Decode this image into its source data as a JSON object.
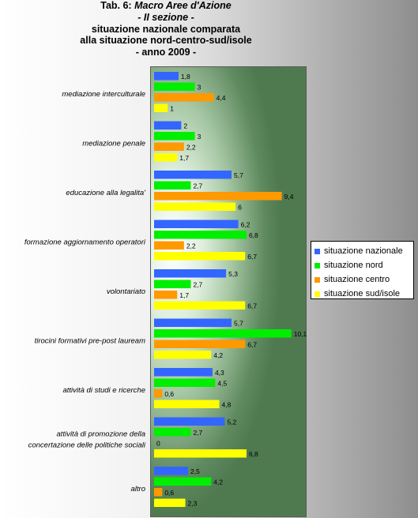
{
  "title": {
    "line1_prefix": "Tab. 6: ",
    "line1_italic": "Macro Aree d'Azione",
    "line2": "- II sezione -",
    "line3": "situazione nazionale comparata",
    "line4": "alla situazione nord-centro-sud/isole",
    "line5": "- anno 2009 -"
  },
  "chart_data": {
    "type": "bar",
    "orientation": "horizontal",
    "xlim": [
      0,
      12
    ],
    "grid": false,
    "legend_position": "right",
    "categories": [
      "mediazione interculturale",
      "mediazione penale",
      "educazione alla legalita'",
      "formazione aggiornamento  operatori",
      "volontariato",
      "tirocini formativi pre-post lauream",
      "attività di studi e ricerche",
      "attività di promozione della|concertazione delle politiche sociali",
      "altro"
    ],
    "series": [
      {
        "name": "situazione nazionale",
        "color": "#3366ff",
        "values": [
          1.8,
          2,
          5.7,
          6.2,
          5.3,
          5.7,
          4.3,
          5.2,
          2.5
        ]
      },
      {
        "name": "situazione nord",
        "color": "#00ee00",
        "values": [
          3,
          3,
          2.7,
          6.8,
          2.7,
          10.1,
          4.5,
          2.7,
          4.2
        ]
      },
      {
        "name": "situazione centro",
        "color": "#ff9900",
        "values": [
          4.4,
          2.2,
          9.4,
          2.2,
          1.7,
          6.7,
          0.6,
          0,
          0.6
        ]
      },
      {
        "name": "situazione sud/isole",
        "color": "#ffff00",
        "values": [
          1,
          1.7,
          6,
          6.7,
          6.7,
          4.2,
          4.8,
          6.8,
          2.3
        ]
      }
    ],
    "value_labels": [
      [
        "1,8",
        "3",
        "4,4",
        "1"
      ],
      [
        "2",
        "3",
        "2,2",
        "1,7"
      ],
      [
        "5,7",
        "2,7",
        "9,4",
        "6"
      ],
      [
        "6,2",
        "6,8",
        "2,2",
        "6,7"
      ],
      [
        "5,3",
        "2,7",
        "1,7",
        "6,7"
      ],
      [
        "5,7",
        "10,1",
        "6,7",
        "4,2"
      ],
      [
        "4,3",
        "4,5",
        "0,6",
        "4,8"
      ],
      [
        "5,2",
        "2,7",
        "0",
        "6,8"
      ],
      [
        "2,5",
        "4,2",
        "0,6",
        "2,3"
      ]
    ]
  }
}
